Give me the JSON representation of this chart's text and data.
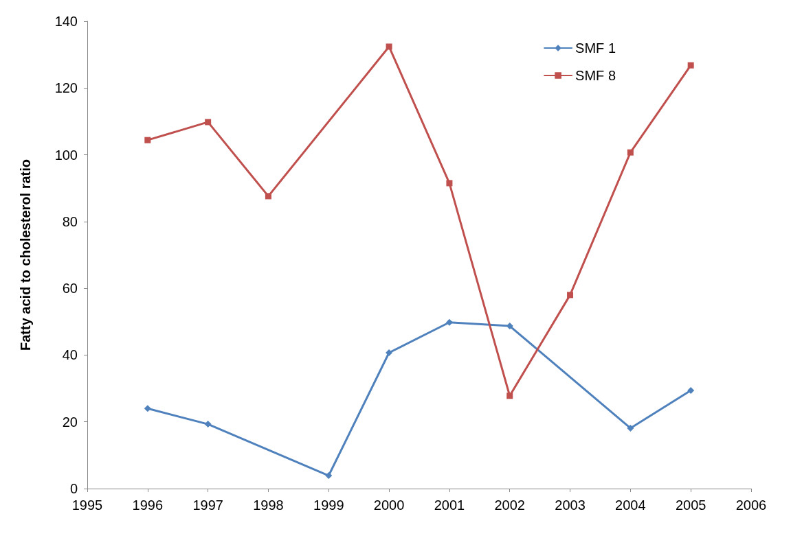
{
  "chart_data": {
    "type": "line",
    "ylabel": "Fatty acid to cholesterol ratio",
    "x": [
      1996,
      1997,
      1998,
      1999,
      2000,
      2001,
      2002,
      2003,
      2004,
      2005
    ],
    "series": [
      {
        "name": "SMF 1",
        "color": "#4f81bd",
        "marker": "diamond",
        "values": [
          24,
          19.3,
          null,
          3.9,
          40.7,
          49.8,
          48.7,
          null,
          18.1,
          29.4
        ]
      },
      {
        "name": "SMF 8",
        "color": "#c0504d",
        "marker": "square",
        "values": [
          104.4,
          109.8,
          87.6,
          null,
          132.4,
          91.5,
          27.8,
          58,
          100.7,
          126.8
        ]
      }
    ],
    "xlim": [
      1995,
      2006
    ],
    "xticks": [
      1995,
      1996,
      1997,
      1998,
      1999,
      2000,
      2001,
      2002,
      2003,
      2004,
      2005,
      2006
    ],
    "ylim": [
      0,
      140
    ],
    "yticks": [
      0,
      20,
      40,
      60,
      80,
      100,
      120,
      140
    ],
    "grid": false,
    "legend": "top right",
    "line_style": "solid"
  }
}
